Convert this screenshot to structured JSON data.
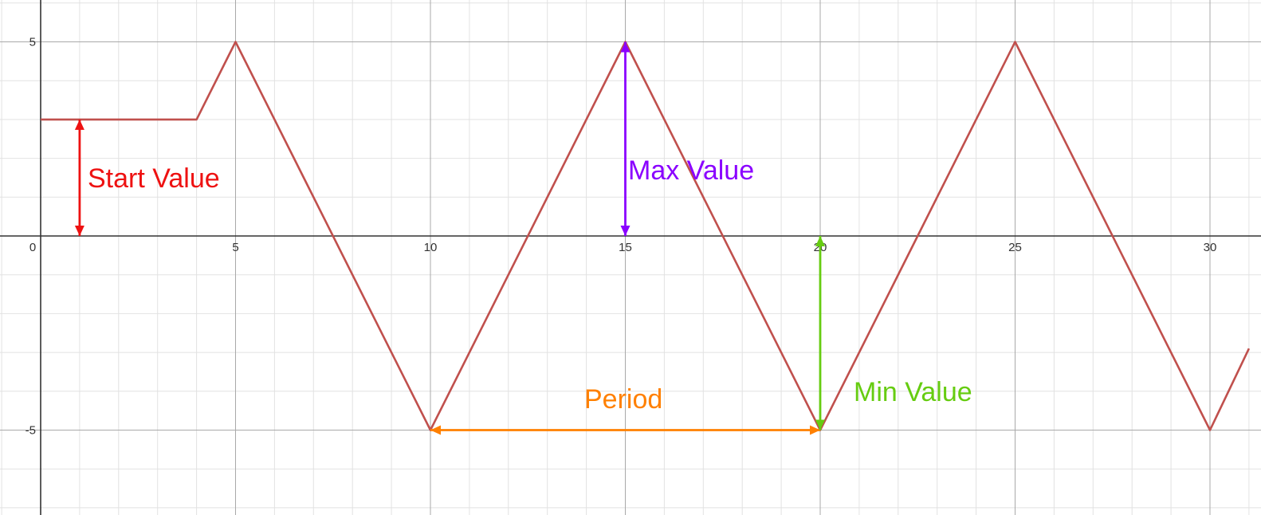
{
  "chart_data": {
    "type": "line",
    "xlim": [
      -1,
      31
    ],
    "ylim": [
      -7,
      6
    ],
    "grid": true,
    "x_ticks": [
      "0",
      "5",
      "10",
      "15",
      "20",
      "25",
      "30"
    ],
    "y_ticks": [
      "5",
      "-5"
    ],
    "series": [
      {
        "color": "#c0504d",
        "points": [
          [
            0,
            3
          ],
          [
            4,
            3
          ],
          [
            5,
            5
          ],
          [
            10,
            -5
          ],
          [
            15,
            5
          ],
          [
            20,
            -5
          ],
          [
            25,
            5
          ],
          [
            30,
            -5
          ],
          [
            31,
            -2.9
          ]
        ]
      }
    ],
    "annotations": [
      {
        "label": "Start Value",
        "color": "#ee1111",
        "arrow": {
          "from": [
            1,
            3
          ],
          "to": [
            1,
            0
          ]
        }
      },
      {
        "label": "Max Value",
        "color": "#8a00ff",
        "arrow": {
          "from": [
            15,
            5
          ],
          "to": [
            15,
            0
          ]
        }
      },
      {
        "label": "Period",
        "color": "#ff8000",
        "arrow": {
          "from": [
            10,
            -5
          ],
          "to": [
            20,
            -5
          ]
        }
      },
      {
        "label": "Min Value",
        "color": "#66cc11",
        "arrow": {
          "from": [
            20,
            0
          ],
          "to": [
            20,
            -5
          ]
        }
      }
    ]
  }
}
